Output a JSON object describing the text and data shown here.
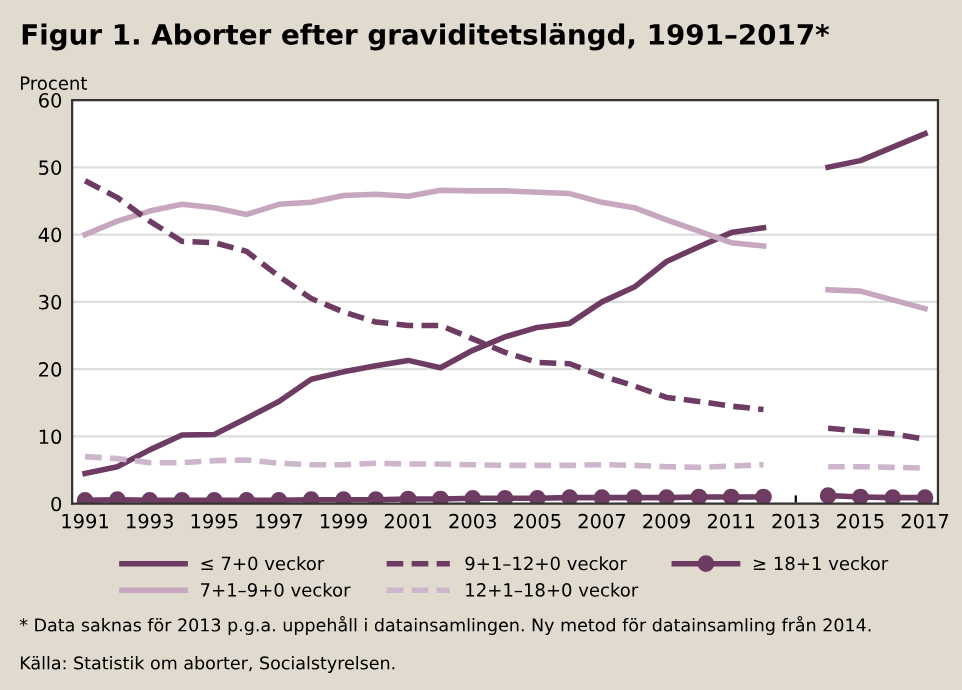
{
  "chart_data": {
    "type": "line",
    "title": "Figur 1. Aborter efter graviditetslängd, 1991–2017*",
    "ylabel": "Procent",
    "x": [
      1991,
      1992,
      1993,
      1994,
      1995,
      1996,
      1997,
      1998,
      1999,
      2000,
      2001,
      2002,
      2003,
      2004,
      2005,
      2006,
      2007,
      2008,
      2009,
      2010,
      2011,
      2012,
      2013,
      2014,
      2015,
      2016,
      2017
    ],
    "xlim": [
      1990.6,
      2017.4
    ],
    "xticks": [
      1991,
      1993,
      1995,
      1997,
      1999,
      2001,
      2003,
      2005,
      2007,
      2009,
      2011,
      2013,
      2015,
      2017
    ],
    "ylim": [
      0,
      60
    ],
    "yticks": [
      0,
      10,
      20,
      30,
      40,
      50,
      60
    ],
    "grid": "y",
    "legend": "bottom",
    "series": [
      {
        "name": "≤ 7+0 veckor",
        "color": "#6e3b63",
        "line_style": "solid",
        "marker": "none",
        "values": [
          4.5,
          5.5,
          8,
          10.2,
          10.3,
          12.7,
          15.2,
          18.5,
          19.6,
          20.5,
          21.3,
          20.2,
          22.8,
          24.8,
          26.2,
          26.8,
          30,
          32.2,
          36,
          38.2,
          40.3,
          41,
          null,
          50,
          51,
          53,
          55
        ]
      },
      {
        "name": "7+1–9+0 veckor",
        "color": "#c6a7bf",
        "line_style": "solid",
        "marker": "none",
        "values": [
          40,
          42,
          43.5,
          44.5,
          44,
          43,
          44.5,
          44.8,
          45.8,
          46,
          45.7,
          46.6,
          46.5,
          46.5,
          46.3,
          46.1,
          44.8,
          44,
          42.2,
          40.5,
          38.8,
          38.3,
          null,
          31.8,
          31.6,
          30.3,
          29
        ]
      },
      {
        "name": "9+1–12+0 veckor",
        "color": "#6e3b63",
        "line_style": "dashed",
        "marker": "none",
        "values": [
          48,
          45.5,
          42,
          39,
          38.8,
          37.5,
          33.8,
          30.5,
          28.5,
          27,
          26.5,
          26.5,
          24.5,
          22.5,
          21,
          20.8,
          19,
          17.5,
          15.8,
          15.2,
          14.5,
          14,
          null,
          11.2,
          10.8,
          10.4,
          9.6
        ]
      },
      {
        "name": "12+1–18+0 veckor",
        "color": "#cdb6cb",
        "line_style": "dashed",
        "marker": "none",
        "values": [
          7,
          6.7,
          6.1,
          6.1,
          6.4,
          6.5,
          6,
          5.8,
          5.8,
          6,
          5.9,
          5.9,
          5.8,
          5.7,
          5.7,
          5.7,
          5.8,
          5.7,
          5.5,
          5.4,
          5.6,
          5.8,
          null,
          5.5,
          5.5,
          5.4,
          5.3
        ]
      },
      {
        "name": "≥ 18+1 veckor",
        "color": "#6e3b63",
        "line_style": "solid",
        "marker": "circle",
        "values": [
          0.5,
          0.6,
          0.5,
          0.5,
          0.5,
          0.5,
          0.5,
          0.6,
          0.6,
          0.6,
          0.7,
          0.7,
          0.8,
          0.8,
          0.8,
          0.9,
          0.9,
          0.9,
          0.9,
          1,
          1,
          1,
          null,
          1.2,
          1,
          0.9,
          0.9
        ]
      }
    ],
    "annotations": [
      "* Data saknas för 2013 p.g.a. uppehåll i datainsamlingen. Ny metod för datainsamling från 2014.",
      "Källa: Statistik om aborter, Socialstyrelsen."
    ]
  }
}
